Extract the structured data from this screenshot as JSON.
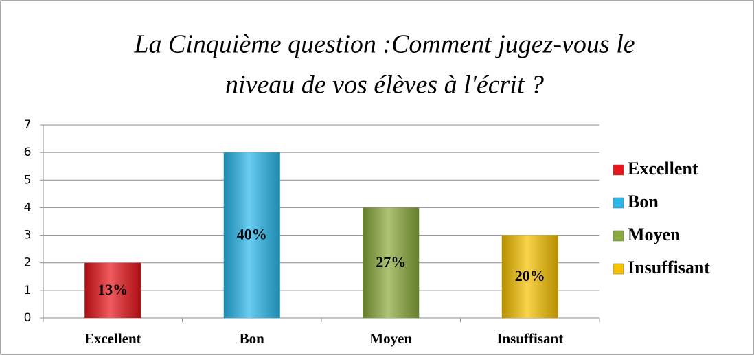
{
  "chart_data": {
    "type": "bar",
    "title": [
      "La Cinquième question :Comment jugez-vous le",
      "niveau de vos élèves à l'écrit ?"
    ],
    "categories": [
      "Excellent",
      "Bon",
      "Moyen",
      "Insuffisant"
    ],
    "values": [
      2,
      6,
      4,
      3
    ],
    "data_labels": [
      "13%",
      "40%",
      "27%",
      "20%"
    ],
    "colors": [
      "#e8161b",
      "#2ab8ec",
      "#8aab3b",
      "#f7c200"
    ],
    "ylim": [
      0,
      7
    ],
    "yticks": [
      0,
      1,
      2,
      3,
      4,
      5,
      6,
      7
    ],
    "grid": true,
    "legend": "right"
  }
}
